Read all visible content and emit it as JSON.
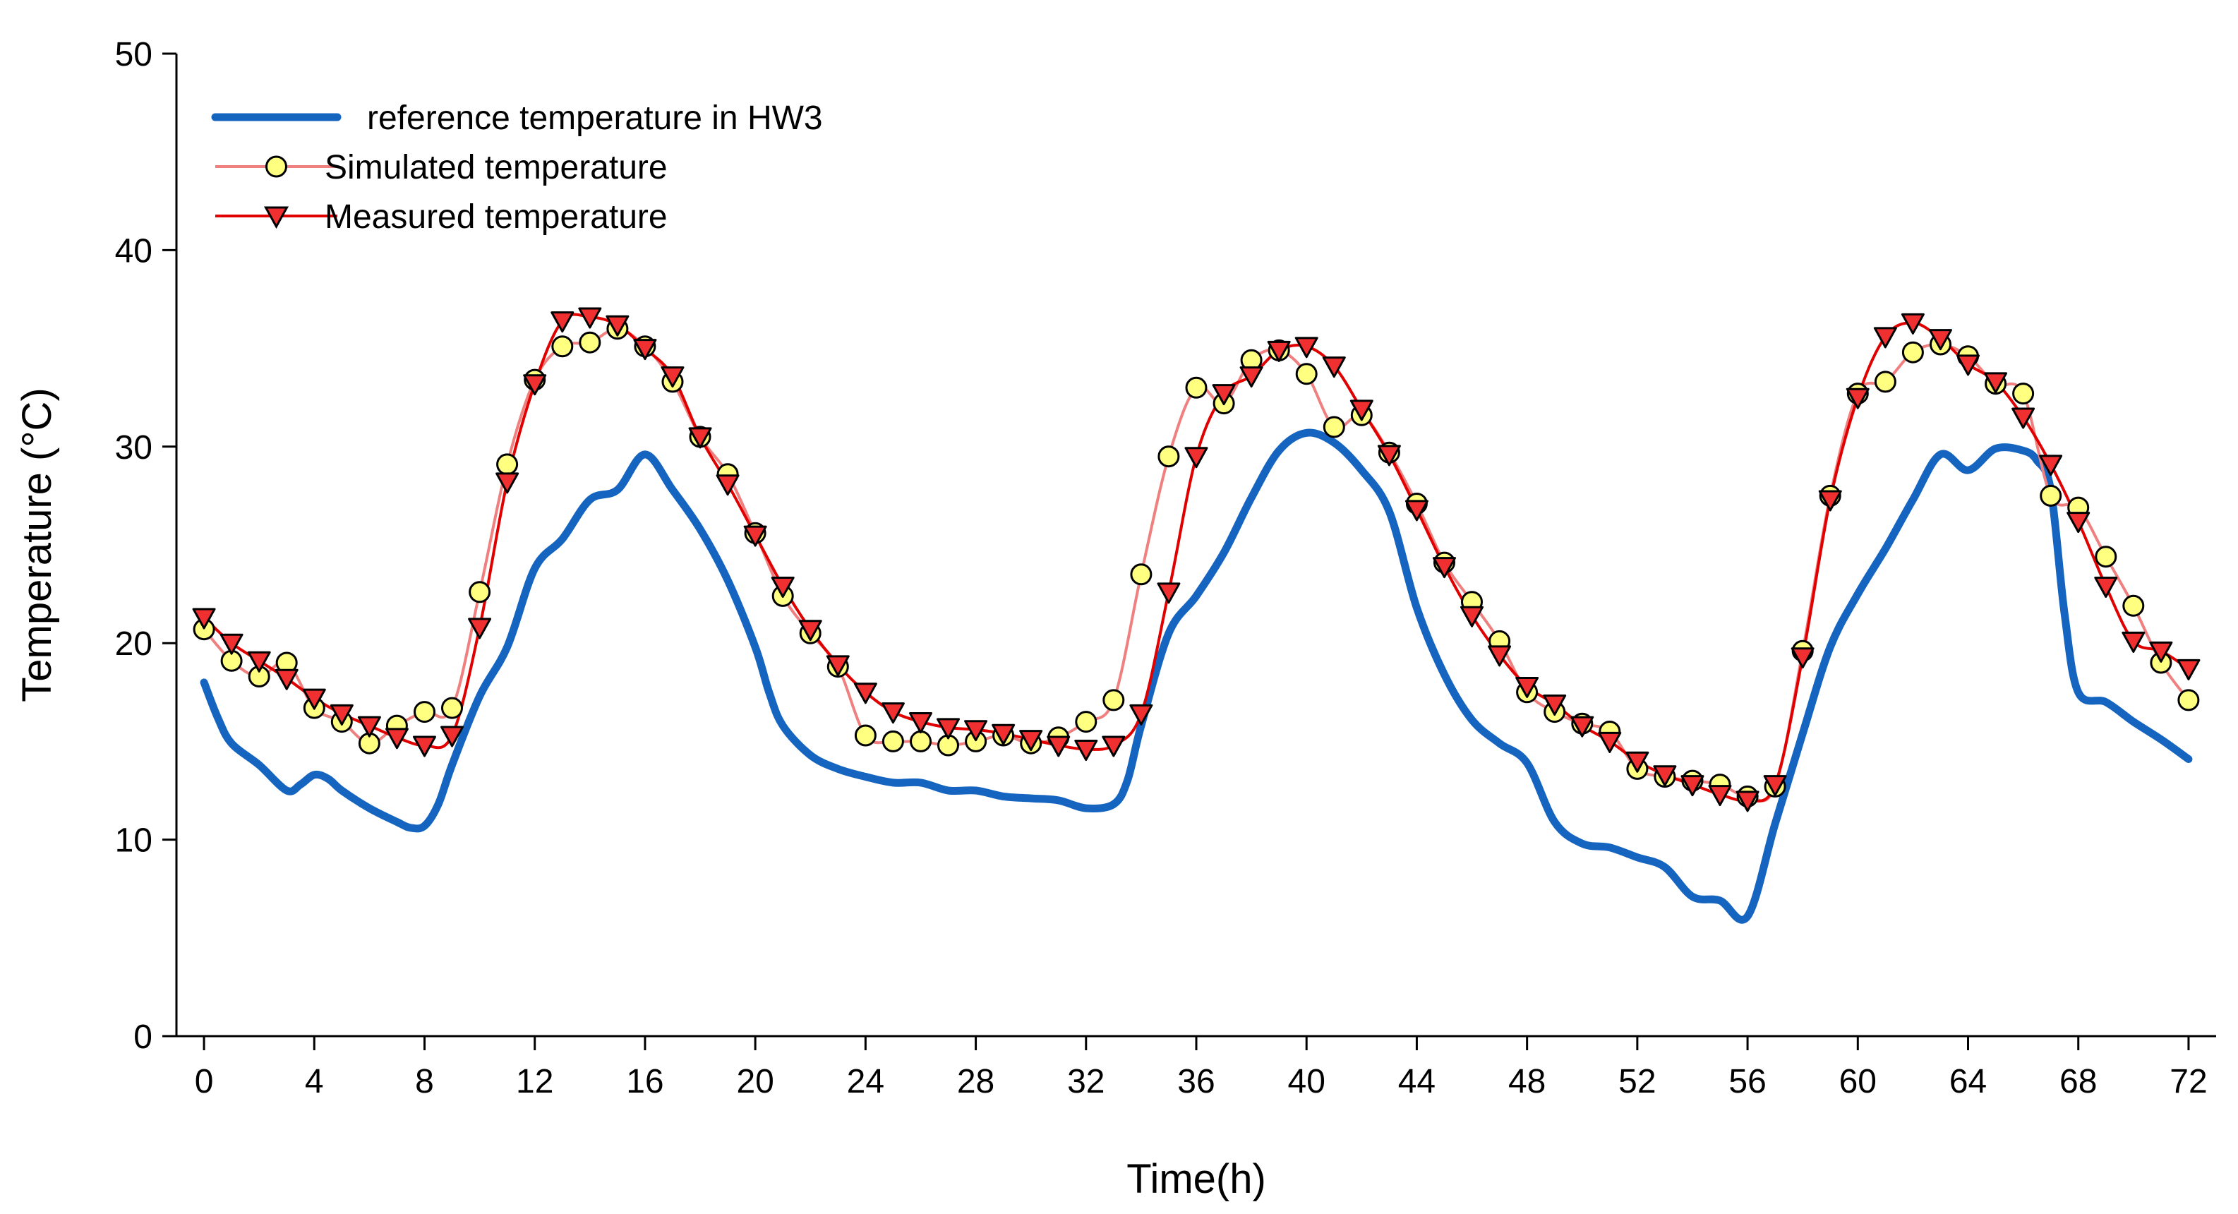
{
  "chart_data": {
    "type": "line",
    "title": "",
    "xlabel": "Time(h)",
    "ylabel": "Temperature (°C)",
    "xlim": [
      -1,
      73
    ],
    "ylim": [
      0,
      50
    ],
    "xticks": [
      0,
      4,
      8,
      12,
      16,
      20,
      24,
      28,
      32,
      36,
      40,
      44,
      48,
      52,
      56,
      60,
      64,
      68,
      72
    ],
    "yticks": [
      0,
      10,
      20,
      30,
      40,
      50
    ],
    "grid": false,
    "legend_position": "top-left",
    "colors": {
      "reference": "#1565C0",
      "simulated_line": "#F08080",
      "simulated_marker": "#FFFF80",
      "measured_line": "#E00000",
      "measured_marker": "#F03030"
    },
    "series": [
      {
        "name": "reference temperature in HW3",
        "style": "thick-line",
        "x": [
          0,
          0.5,
          1,
          2,
          3,
          3.5,
          4,
          4.5,
          5,
          6,
          7,
          7.5,
          8,
          8.5,
          9,
          10,
          11,
          12,
          13,
          14,
          15,
          16,
          17,
          18,
          19,
          20,
          20.5,
          21,
          22,
          23,
          24,
          25,
          26,
          27,
          28,
          29,
          30,
          31,
          32,
          33,
          33.5,
          34,
          35,
          36,
          37,
          38,
          39,
          40,
          41,
          42,
          43,
          44,
          45,
          46,
          47,
          48,
          49,
          50,
          51,
          52,
          53,
          54,
          55,
          56,
          57,
          58,
          59,
          60,
          61,
          62,
          63,
          64,
          65,
          66,
          66.5,
          67,
          67.5,
          68,
          69,
          70,
          71,
          72
        ],
        "y": [
          18,
          16.2,
          14.9,
          13.8,
          12.5,
          12.8,
          13.3,
          13.1,
          12.5,
          11.6,
          10.9,
          10.6,
          10.7,
          11.8,
          13.8,
          17.3,
          19.8,
          23.8,
          25.3,
          27.3,
          27.8,
          29.6,
          27.8,
          25.8,
          23.2,
          19.8,
          17.5,
          15.8,
          14.3,
          13.6,
          13.2,
          12.9,
          12.9,
          12.5,
          12.5,
          12.2,
          12.1,
          12,
          11.6,
          11.8,
          13,
          15.8,
          20.5,
          22.4,
          24.6,
          27.4,
          29.8,
          30.7,
          30.2,
          28.8,
          26.7,
          21.8,
          18.4,
          16.1,
          14.9,
          13.9,
          10.9,
          9.8,
          9.6,
          9.1,
          8.6,
          7.1,
          6.9,
          6.1,
          10.8,
          15.4,
          19.8,
          22.5,
          24.8,
          27.3,
          29.6,
          28.8,
          29.9,
          29.8,
          29.3,
          27.8,
          21.5,
          17.5,
          17,
          16,
          15.1,
          14.1
        ]
      },
      {
        "name": "Simulated temperature",
        "style": "line-circle",
        "x": [
          0,
          1,
          2,
          3,
          4,
          5,
          6,
          7,
          8,
          9,
          10,
          11,
          12,
          13,
          14,
          15,
          16,
          17,
          18,
          19,
          20,
          21,
          22,
          23,
          24,
          25,
          26,
          27,
          28,
          29,
          30,
          31,
          32,
          33,
          34,
          35,
          36,
          37,
          38,
          39,
          40,
          41,
          42,
          43,
          44,
          45,
          46,
          47,
          48,
          49,
          50,
          51,
          52,
          53,
          54,
          55,
          56,
          57,
          58,
          59,
          60,
          61,
          62,
          63,
          64,
          65,
          66,
          67,
          68,
          69,
          70,
          71,
          72
        ],
        "y": [
          20.7,
          19.1,
          18.3,
          19,
          16.7,
          16,
          14.9,
          15.8,
          16.5,
          16.7,
          22.6,
          29.1,
          33.4,
          35.1,
          35.3,
          36,
          35.1,
          33.3,
          30.5,
          28.6,
          25.6,
          22.4,
          20.5,
          18.8,
          15.3,
          15,
          15,
          14.8,
          15,
          15.3,
          14.9,
          15.2,
          16,
          17.1,
          23.5,
          29.5,
          33,
          32.2,
          34.4,
          34.9,
          33.7,
          31,
          31.6,
          29.7,
          27.1,
          24.1,
          22.1,
          20.1,
          17.5,
          16.5,
          15.9,
          15.5,
          13.6,
          13.2,
          13,
          12.8,
          12.2,
          12.7,
          19.6,
          27.5,
          32.7,
          33.3,
          34.8,
          35.2,
          34.6,
          33.2,
          32.7,
          27.5,
          26.9,
          24.4,
          21.9,
          19,
          17.1
        ]
      },
      {
        "name": "Measured temperature",
        "style": "line-triangle",
        "x": [
          0,
          1,
          2,
          3,
          4,
          5,
          6,
          7,
          8,
          9,
          10,
          11,
          12,
          13,
          14,
          15,
          16,
          17,
          18,
          19,
          20,
          21,
          22,
          23,
          24,
          25,
          26,
          27,
          28,
          29,
          30,
          31,
          32,
          33,
          34,
          35,
          36,
          37,
          38,
          39,
          40,
          41,
          42,
          43,
          44,
          45,
          46,
          47,
          48,
          49,
          50,
          51,
          52,
          53,
          54,
          55,
          56,
          57,
          58,
          59,
          60,
          61,
          62,
          63,
          64,
          65,
          66,
          67,
          68,
          69,
          70,
          71,
          72
        ],
        "y": [
          21.3,
          20,
          19.1,
          18.2,
          17.2,
          16.4,
          15.8,
          15.2,
          14.8,
          15.3,
          20.8,
          28.2,
          33.2,
          36.4,
          36.6,
          36.2,
          35,
          33.6,
          30.5,
          28.1,
          25.5,
          22.9,
          20.7,
          18.9,
          17.5,
          16.5,
          16,
          15.7,
          15.6,
          15.4,
          15.1,
          14.8,
          14.6,
          14.8,
          16.4,
          22.6,
          29.5,
          32.7,
          33.6,
          34.9,
          35.1,
          34.1,
          31.9,
          29.6,
          26.8,
          23.9,
          21.4,
          19.4,
          17.8,
          16.9,
          15.8,
          15,
          14,
          13.3,
          12.8,
          12.3,
          12,
          12.8,
          19.3,
          27.3,
          32.5,
          35.6,
          36.3,
          35.5,
          34.2,
          33.3,
          31.5,
          29.1,
          26.2,
          22.9,
          20.1,
          19.6,
          18.7
        ]
      }
    ]
  }
}
